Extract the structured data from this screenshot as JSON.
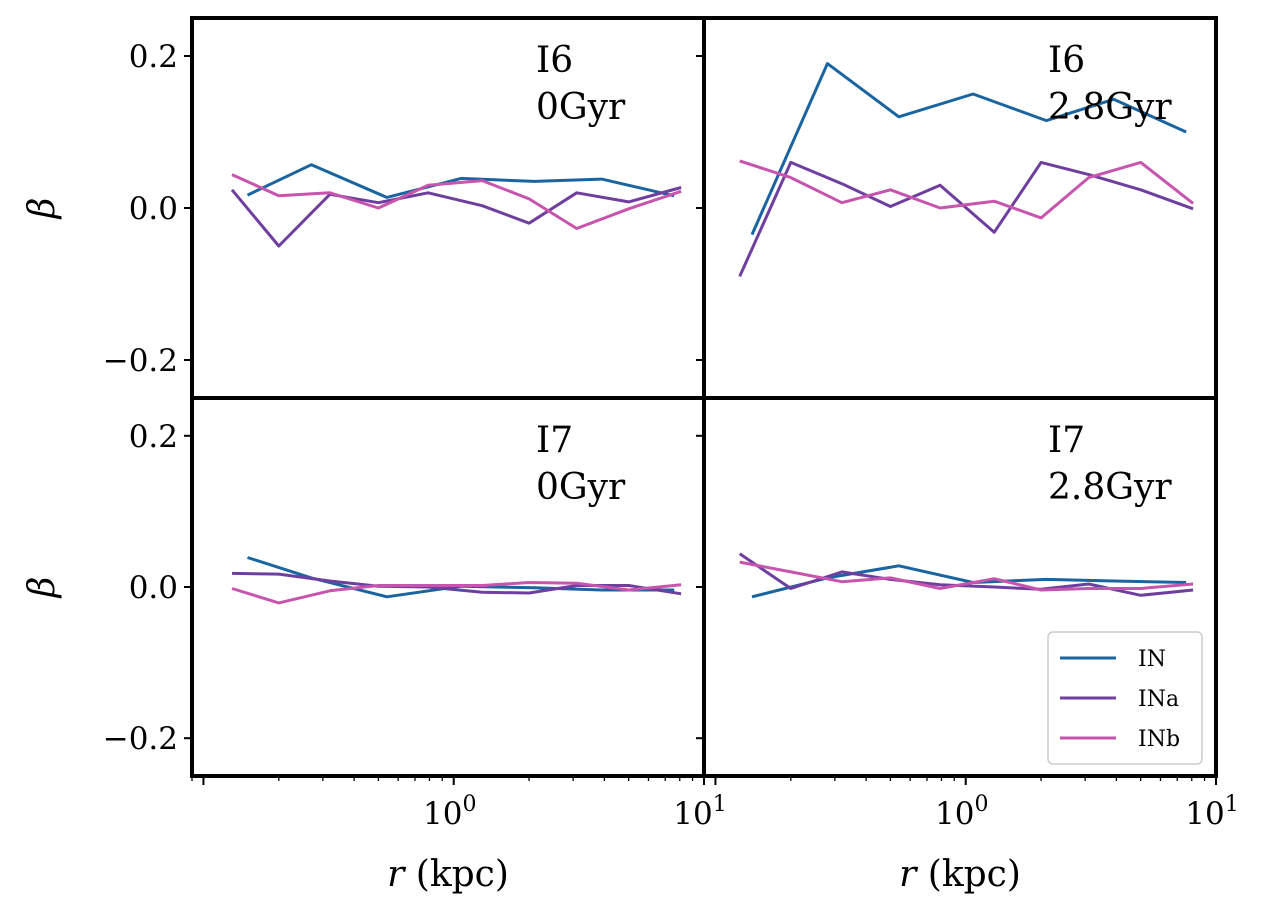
{
  "chart_data": {
    "type": "line",
    "x_scale": "log",
    "xlim": [
      0.09,
      10
    ],
    "ylim": [
      -0.25,
      0.25
    ],
    "ylabel": "β",
    "xlabel_var": "r",
    "xlabel_unit": "(kpc)",
    "y_ticks": [
      {
        "v": 0.2,
        "label": "0.2"
      },
      {
        "v": 0.0,
        "label": "0.0"
      },
      {
        "v": -0.2,
        "label": "−0.2"
      }
    ],
    "x_ticks": [
      {
        "v": 1,
        "base": "10",
        "exp": "0"
      },
      {
        "v": 10,
        "base": "10",
        "exp": "1"
      }
    ],
    "legend": {
      "location": "lower-right",
      "entries": [
        {
          "name": "IN",
          "color": "#1a64a0"
        },
        {
          "name": "INa",
          "color": "#6f3fa0"
        },
        {
          "name": "INb",
          "color": "#c754ad"
        }
      ]
    },
    "panels": [
      {
        "label_line1": "I6",
        "label_line2": "0Gyr",
        "series": [
          {
            "name": "IN",
            "color": "#1a64a0",
            "x": [
              0.15,
              0.27,
              0.54,
              1.07,
              2.1,
              3.9,
              7.6
            ],
            "y": [
              0.017,
              0.057,
              0.014,
              0.039,
              0.035,
              0.038,
              0.016
            ]
          },
          {
            "name": "INa",
            "color": "#6f3fa0",
            "x": [
              0.13,
              0.2,
              0.32,
              0.5,
              0.79,
              1.3,
              2.0,
              3.1,
              5.0,
              8.1
            ],
            "y": [
              0.024,
              -0.05,
              0.018,
              0.007,
              0.02,
              0.003,
              -0.02,
              0.02,
              0.008,
              0.027
            ]
          },
          {
            "name": "INb",
            "color": "#c754ad",
            "x": [
              0.13,
              0.2,
              0.32,
              0.5,
              0.79,
              1.3,
              2.0,
              3.1,
              5.0,
              8.1
            ],
            "y": [
              0.044,
              0.016,
              0.02,
              0.0,
              0.03,
              0.036,
              0.012,
              -0.027,
              -0.001,
              0.022
            ]
          }
        ]
      },
      {
        "label_line1": "I6",
        "label_line2": "2.8Gyr",
        "series": [
          {
            "name": "IN",
            "color": "#1a64a0",
            "x": [
              0.14,
              0.28,
              0.54,
              1.07,
              2.1,
              3.9,
              7.6
            ],
            "y": [
              -0.035,
              0.19,
              0.12,
              0.15,
              0.115,
              0.143,
              0.1
            ]
          },
          {
            "name": "INa",
            "color": "#6f3fa0",
            "x": [
              0.125,
              0.2,
              0.32,
              0.5,
              0.79,
              1.3,
              2.0,
              3.1,
              5.0,
              8.1
            ],
            "y": [
              -0.09,
              0.06,
              0.032,
              0.002,
              0.03,
              -0.032,
              0.06,
              0.044,
              0.024,
              -0.001
            ]
          },
          {
            "name": "INb",
            "color": "#c754ad",
            "x": [
              0.125,
              0.2,
              0.32,
              0.5,
              0.79,
              1.3,
              2.0,
              3.1,
              5.0,
              8.1
            ],
            "y": [
              0.062,
              0.04,
              0.007,
              0.024,
              0.0,
              0.009,
              -0.013,
              0.04,
              0.06,
              0.006
            ]
          }
        ]
      },
      {
        "label_line1": "I7",
        "label_line2": "0Gyr",
        "series": [
          {
            "name": "IN",
            "color": "#1a64a0",
            "x": [
              0.15,
              0.27,
              0.54,
              1.07,
              2.1,
              3.9,
              7.6
            ],
            "y": [
              0.039,
              0.012,
              -0.013,
              0.001,
              -0.001,
              -0.004,
              -0.004
            ]
          },
          {
            "name": "INa",
            "color": "#6f3fa0",
            "x": [
              0.13,
              0.2,
              0.32,
              0.5,
              0.79,
              1.3,
              2.0,
              3.1,
              5.0,
              8.1
            ],
            "y": [
              0.018,
              0.017,
              0.008,
              0.001,
              0.0,
              -0.007,
              -0.008,
              0.002,
              0.002,
              -0.009
            ]
          },
          {
            "name": "INb",
            "color": "#c754ad",
            "x": [
              0.13,
              0.2,
              0.32,
              0.5,
              0.79,
              1.3,
              2.0,
              3.1,
              5.0,
              8.1
            ],
            "y": [
              -0.002,
              -0.021,
              -0.005,
              0.002,
              0.002,
              0.002,
              0.006,
              0.005,
              -0.004,
              0.003
            ]
          }
        ]
      },
      {
        "label_line1": "I7",
        "label_line2": "2.8Gyr",
        "series": [
          {
            "name": "IN",
            "color": "#1a64a0",
            "x": [
              0.14,
              0.28,
              0.54,
              1.07,
              2.1,
              3.9,
              7.6
            ],
            "y": [
              -0.013,
              0.012,
              0.028,
              0.006,
              0.01,
              0.008,
              0.006
            ]
          },
          {
            "name": "INa",
            "color": "#6f3fa0",
            "x": [
              0.125,
              0.2,
              0.32,
              0.5,
              0.79,
              1.3,
              2.0,
              3.1,
              5.0,
              8.1
            ],
            "y": [
              0.044,
              -0.002,
              0.02,
              0.01,
              0.003,
              0.0,
              -0.003,
              0.004,
              -0.011,
              -0.004
            ]
          },
          {
            "name": "INb",
            "color": "#c754ad",
            "x": [
              0.125,
              0.2,
              0.32,
              0.5,
              0.79,
              1.3,
              2.0,
              3.1,
              5.0,
              8.1
            ],
            "y": [
              0.033,
              0.02,
              0.007,
              0.012,
              -0.002,
              0.011,
              -0.004,
              -0.002,
              -0.002,
              0.004
            ]
          }
        ]
      }
    ]
  }
}
